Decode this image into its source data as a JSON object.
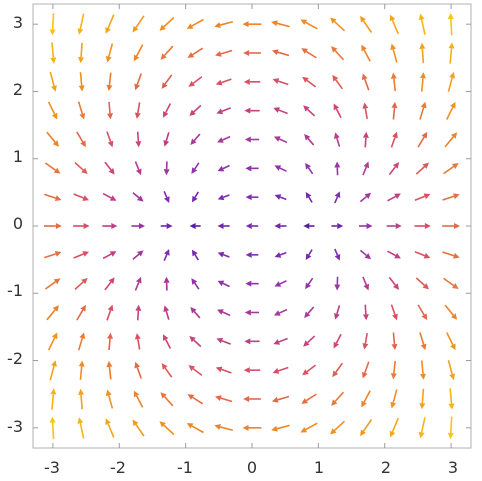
{
  "chart_data": {
    "type": "vector-field",
    "title": "",
    "xlabel": "",
    "ylabel": "",
    "xlim": [
      -3.3,
      3.3
    ],
    "ylim": [
      -3.3,
      3.3
    ],
    "grid": false,
    "x_ticks": [
      "-3",
      "-2",
      "-1",
      "0",
      "1",
      "2",
      "3"
    ],
    "y_ticks": [
      "-3",
      "-2",
      "-1",
      "0",
      "1",
      "2",
      "3"
    ],
    "field": {
      "components": [
        "x^2 - y^2 - 1",
        "2 x y"
      ],
      "samples_per_axis": 15,
      "range": [
        -3,
        3
      ]
    },
    "colors": {
      "low": "#3b0f9a",
      "mid_low": "#8a2fb4",
      "mid": "#d2476f",
      "mid_high": "#f08a22",
      "high": "#f8c511",
      "frame": "#b0b0b0",
      "text": "#333333"
    }
  }
}
